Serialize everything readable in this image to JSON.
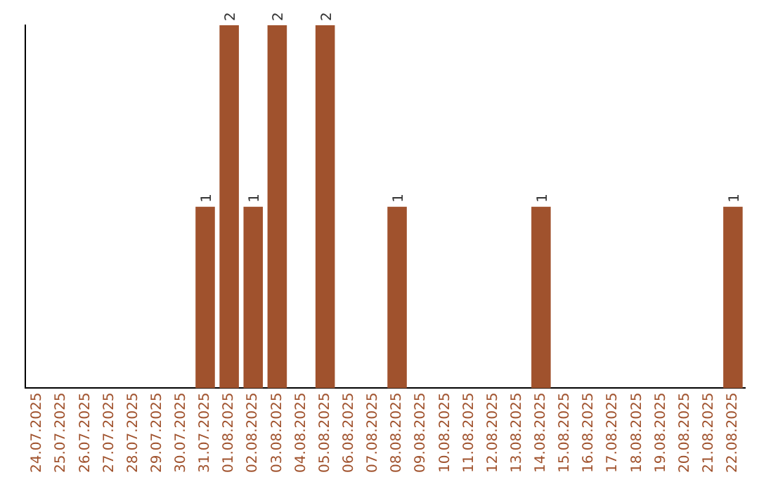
{
  "chart_data": {
    "type": "bar",
    "categories": [
      "24.07.2025",
      "25.07.2025",
      "26.07.2025",
      "27.07.2025",
      "28.07.2025",
      "29.07.2025",
      "30.07.2025",
      "31.07.2025",
      "01.08.2025",
      "02.08.2025",
      "03.08.2025",
      "04.08.2025",
      "05.08.2025",
      "06.08.2025",
      "07.08.2025",
      "08.08.2025",
      "09.08.2025",
      "10.08.2025",
      "11.08.2025",
      "12.08.2025",
      "13.08.2025",
      "14.08.2025",
      "15.08.2025",
      "16.08.2025",
      "17.08.2025",
      "18.08.2025",
      "19.08.2025",
      "20.08.2025",
      "21.08.2025",
      "22.08.2025"
    ],
    "values": [
      0,
      0,
      0,
      0,
      0,
      0,
      0,
      1,
      2,
      1,
      2,
      0,
      2,
      0,
      0,
      1,
      0,
      0,
      0,
      0,
      0,
      1,
      0,
      0,
      0,
      0,
      0,
      0,
      0,
      1
    ],
    "value_labels": [
      null,
      null,
      null,
      null,
      null,
      null,
      null,
      "1",
      "2",
      "1",
      "2",
      null,
      "2",
      null,
      null,
      "1",
      null,
      null,
      null,
      null,
      null,
      "1",
      null,
      null,
      null,
      null,
      null,
      null,
      null,
      "1"
    ],
    "color": "#a0522d",
    "grid": false,
    "legend": false
  }
}
